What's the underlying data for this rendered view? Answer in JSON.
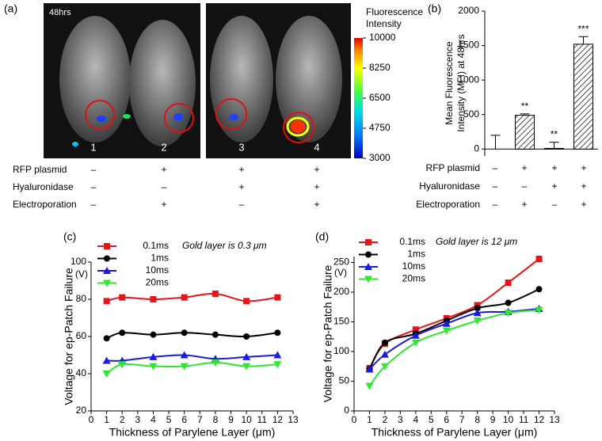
{
  "image_panel": {
    "panel": "(a)",
    "time": "48hrs",
    "mouse_labels": [
      "1",
      "2",
      "3",
      "4"
    ],
    "colorbar": {
      "title_lines": [
        "Fluorescence",
        "Intensity"
      ],
      "clim": [
        3000,
        10000
      ],
      "ticks": [
        10000,
        8250,
        6500,
        4750,
        3000
      ]
    }
  },
  "conditions": {
    "rows": [
      {
        "label": "RFP plasmid",
        "marks": [
          "–",
          "+",
          "+",
          "+"
        ]
      },
      {
        "label": "Hyaluronidase",
        "marks": [
          "–",
          "–",
          "+",
          "+"
        ]
      },
      {
        "label": "Electroporation",
        "marks": [
          "–",
          "+",
          "–",
          "+"
        ]
      }
    ]
  },
  "chart_data": [
    {
      "type": "bar",
      "panel": "(b)",
      "ylabel_lines": [
        "Mean Fluorescence",
        "Intensity (MFI) at 48hrs"
      ],
      "categories": [
        null,
        null,
        null,
        null
      ],
      "values": [
        0,
        490,
        10,
        1520
      ],
      "errors": [
        200,
        20,
        90,
        110
      ],
      "significance": [
        null,
        "**",
        "**",
        "***"
      ],
      "ylim": [
        -100,
        2000
      ],
      "yticks": [
        0,
        500,
        1000,
        1500,
        2000
      ]
    },
    {
      "type": "line",
      "panel": "(c)",
      "annotation": "Gold layer is 0.3 μm",
      "ylabel": "Voltage for ep-Patch Failure",
      "yunit": "(V)",
      "xlabel": "Thickness of Parylene Layer (μm)",
      "x": [
        1,
        2,
        4,
        6,
        8,
        10,
        12
      ],
      "xlim": [
        0,
        13
      ],
      "xticks": [
        0,
        1,
        2,
        3,
        4,
        5,
        6,
        7,
        8,
        9,
        10,
        11,
        12,
        13
      ],
      "ylim": [
        20,
        100
      ],
      "yticks": [
        20,
        40,
        60,
        80,
        100
      ],
      "series": [
        {
          "name": "0.1ms",
          "color": "#e8141b",
          "marker": "square",
          "values": [
            79,
            81,
            80,
            81,
            83,
            79,
            81
          ]
        },
        {
          "name": "1ms",
          "color": "#000000",
          "marker": "circle",
          "values": [
            59,
            62,
            61,
            62,
            61,
            60,
            62
          ]
        },
        {
          "name": "10ms",
          "color": "#1b1be0",
          "marker": "triangle-up",
          "values": [
            47,
            47,
            49,
            50,
            48,
            49,
            50
          ]
        },
        {
          "name": "20ms",
          "color": "#2ee82e",
          "marker": "triangle-down",
          "values": [
            40,
            45,
            44,
            44,
            46,
            44,
            45
          ]
        }
      ]
    },
    {
      "type": "line",
      "panel": "(d)",
      "annotation": "Gold layer is 12 μm",
      "ylabel": "Voltage for ep-Patch Failure",
      "yunit": "(V)",
      "xlabel": "Thickness of Parylene Layer (μm)",
      "x": [
        1,
        2,
        4,
        6,
        8,
        10,
        12
      ],
      "xlim": [
        0,
        13
      ],
      "xticks": [
        0,
        1,
        2,
        3,
        4,
        5,
        6,
        7,
        8,
        9,
        10,
        11,
        12,
        13
      ],
      "ylim": [
        0,
        260
      ],
      "yticks": [
        0,
        50,
        100,
        150,
        200,
        250
      ],
      "series": [
        {
          "name": "0.1ms",
          "color": "#e8141b",
          "marker": "square",
          "values": [
            72,
            113,
            137,
            156,
            178,
            216,
            256
          ]
        },
        {
          "name": "1ms",
          "color": "#000000",
          "marker": "circle",
          "values": [
            70,
            115,
            130,
            152,
            173,
            182,
            205
          ]
        },
        {
          "name": "10ms",
          "color": "#1b1be0",
          "marker": "triangle-up",
          "values": [
            70,
            95,
            127,
            147,
            165,
            167,
            172
          ]
        },
        {
          "name": "20ms",
          "color": "#2ee82e",
          "marker": "triangle-down",
          "values": [
            42,
            75,
            115,
            135,
            152,
            165,
            170
          ]
        }
      ]
    }
  ]
}
